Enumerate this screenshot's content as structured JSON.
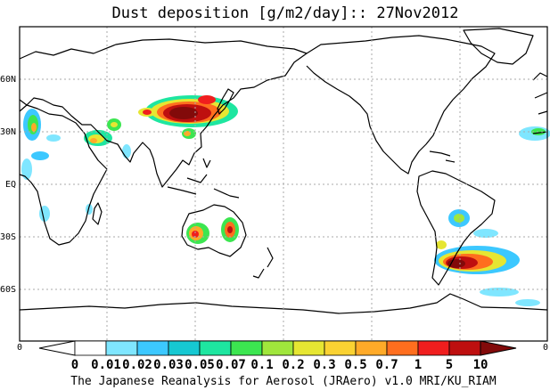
{
  "title": "Dust deposition [g/m2/day]:: 27Nov2012",
  "lat_labels": [
    "60N",
    "30N",
    "EQ",
    "30S",
    "60S"
  ],
  "lon_axis": {
    "left": "0",
    "right": "0"
  },
  "colorbar": {
    "labels": [
      "0",
      "0.01",
      "0.02",
      "0.03",
      "0.05",
      "0.07",
      "0.1",
      "0.2",
      "0.3",
      "0.5",
      "0.7",
      "1",
      "5",
      "10"
    ],
    "colors": [
      "#ffffff",
      "#7fe6ff",
      "#3cc8ff",
      "#16c8d2",
      "#1ee6a0",
      "#3ce650",
      "#a0e63c",
      "#e6e632",
      "#fad232",
      "#ffaa28",
      "#ff6e1e",
      "#f01e1e",
      "#be0f0f",
      "#820a0a"
    ],
    "under_color": "#ffffff",
    "over_color": "#820a0a"
  },
  "credit": "The Japanese Reanalysis for Aerosol (JRAero) v1.0 MRI/KU_RIAM",
  "map": {
    "projection": "equirectangular",
    "center_longitude": "180",
    "lat_range": [
      -90,
      90
    ],
    "dust_regions": [
      {
        "region": "Gobi / Taklimakan",
        "max_level": "10"
      },
      {
        "region": "Sahara (west coast)",
        "max_level": "1"
      },
      {
        "region": "Arabian Peninsula",
        "max_level": "0.5"
      },
      {
        "region": "Australia (central)",
        "max_level": "5"
      },
      {
        "region": "Patagonia",
        "max_level": "10"
      },
      {
        "region": "South America (Chaco)",
        "max_level": "0.3"
      }
    ]
  }
}
